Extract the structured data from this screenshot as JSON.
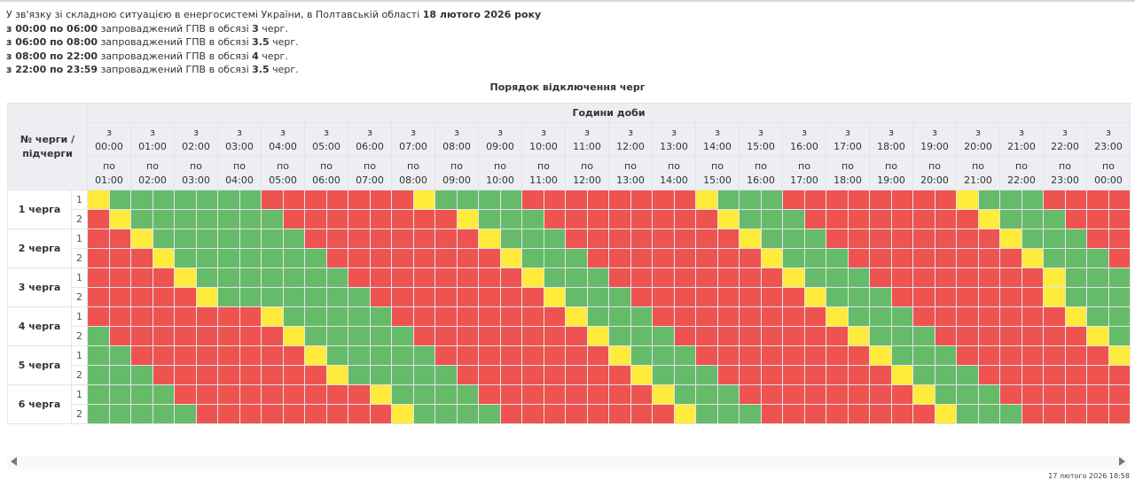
{
  "notice": {
    "intro": "У зв'язку зі складною ситуацією в енергосистемі України, в Полтавській області",
    "date": "18 лютого 2026 року",
    "lines": [
      {
        "from": "з 00:00 по 06:00",
        "text": "запроваджений ГПВ в обсязі",
        "amount": "3",
        "unit": "черг."
      },
      {
        "from": "з 06:00 по 08:00",
        "text": "запроваджений ГПВ в обсязі",
        "amount": "3.5",
        "unit": "черг."
      },
      {
        "from": "з 08:00 по 22:00",
        "text": "запроваджений ГПВ в обсязі",
        "amount": "4",
        "unit": "черг."
      },
      {
        "from": "з 22:00 по 23:59",
        "text": "запроваджений ГПВ в обсязі",
        "amount": "3.5",
        "unit": "черг."
      }
    ]
  },
  "table": {
    "caption": "Порядок відключення черг",
    "corner": "№ черги / підчерги",
    "hours_header": "Години доби",
    "from_prefix": "з",
    "to_prefix": "по",
    "hours": [
      "00:00",
      "01:00",
      "02:00",
      "03:00",
      "04:00",
      "05:00",
      "06:00",
      "07:00",
      "08:00",
      "09:00",
      "10:00",
      "11:00",
      "12:00",
      "13:00",
      "14:00",
      "15:00",
      "16:00",
      "17:00",
      "18:00",
      "19:00",
      "20:00",
      "21:00",
      "22:00",
      "23:00"
    ],
    "hours_to": [
      "01:00",
      "02:00",
      "03:00",
      "04:00",
      "05:00",
      "06:00",
      "07:00",
      "08:00",
      "09:00",
      "10:00",
      "11:00",
      "12:00",
      "13:00",
      "14:00",
      "15:00",
      "16:00",
      "17:00",
      "18:00",
      "19:00",
      "20:00",
      "21:00",
      "22:00",
      "23:00",
      "00:00"
    ],
    "status_colors": {
      "R": "#ef5350",
      "G": "#66bb6a",
      "Y": "#ffeb3b"
    },
    "groups": [
      {
        "label": "1 черга",
        "subs": [
          {
            "num": "1",
            "cells": "YGGGGGGGRRRRRRRYGGGGRRRRRRRRYGGGRRRRRRRRYGGGRRRR"
          },
          {
            "num": "2",
            "cells": "RYGGGGGGGRRRRRRRRYGGGRRRRRRRRYGGGRRRRRRRRYGGGRRR"
          }
        ]
      },
      {
        "label": "2 черга",
        "subs": [
          {
            "num": "1",
            "cells": "RRYGGGGGGGRRRRRRRRYGGGRRRRRRRRYGGGRRRRRRRRYGGGRR"
          },
          {
            "num": "2",
            "cells": "RRRYGGGGGGGRRRRRRRRYGGGRRRRRRRRYGGGRRRRRRRRYGGGR"
          }
        ]
      },
      {
        "label": "3 черга",
        "subs": [
          {
            "num": "1",
            "cells": "RRRRYGGGGGGGRRRRRRRRYGGGRRRRRRRRYGGGRRRRRRRRYGGG"
          },
          {
            "num": "2",
            "cells": "RRRRRYGGGGGGGRRRRRRRRYGGGRRRRRRRRYGGGRRRRRRRYGGG"
          }
        ]
      },
      {
        "label": "4 черга",
        "subs": [
          {
            "num": "1",
            "cells": "RRRRRRRRYGGGGGRRRRRRRRYGGGRRRRRRRRYGGGRRRRRRRYGG"
          },
          {
            "num": "2",
            "cells": "GRRRRRRRRYGGGGGRRRRRRRRYGGGRRRRRRRRYGGGRRRRRRRYG"
          }
        ]
      },
      {
        "label": "5 черга",
        "subs": [
          {
            "num": "1",
            "cells": "GGRRRRRRRRYGGGGGRRRRRRRRYGGGRRRRRRRRYGGGRRRRRRRY"
          },
          {
            "num": "2",
            "cells": "GGGRRRRRRRRYGGGGGRRRRRRRRYGGGRRRRRRRRYGGGRRRRRRR"
          }
        ]
      },
      {
        "label": "6 черга",
        "subs": [
          {
            "num": "1",
            "cells": "GGGGRRRRRRRRRYGGGGRRRRRRRRYGGGRRRRRRRRYGGGRRRRRR"
          },
          {
            "num": "2",
            "cells": "GGGGGRRRRRRRRRYGGGGRRRRRRRRYGGGRRRRRRRRYGGGRRRRR"
          }
        ]
      }
    ]
  },
  "footer": {
    "timestamp": "17 лютого 2026 18:58"
  }
}
